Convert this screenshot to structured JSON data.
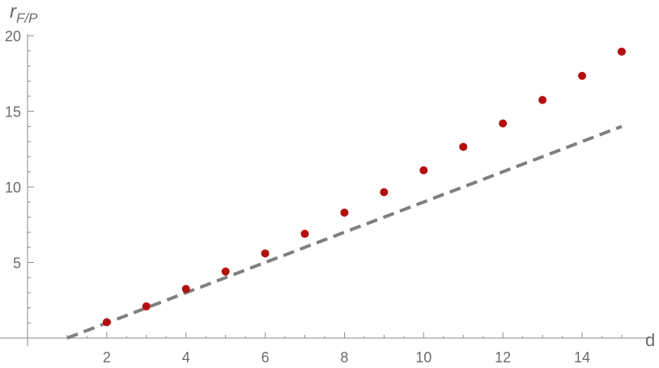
{
  "chart_data": {
    "type": "scatter",
    "title": "",
    "xlabel": "d",
    "ylabel": {
      "base": "r",
      "subscript": "F/P"
    },
    "xlim": [
      0,
      15.7
    ],
    "ylim": [
      0,
      20
    ],
    "x_ticks": [
      2,
      4,
      6,
      8,
      10,
      12,
      14
    ],
    "y_ticks": [
      5,
      10,
      15,
      20
    ],
    "grid": false,
    "series": [
      {
        "type": "scatter",
        "color": "#b30f0f",
        "points": [
          {
            "x": 2,
            "y": 1.05
          },
          {
            "x": 3,
            "y": 2.1
          },
          {
            "x": 4,
            "y": 3.25
          },
          {
            "x": 5,
            "y": 4.4
          },
          {
            "x": 6,
            "y": 5.6
          },
          {
            "x": 7,
            "y": 6.9
          },
          {
            "x": 8,
            "y": 8.3
          },
          {
            "x": 9,
            "y": 9.65
          },
          {
            "x": 10,
            "y": 11.1
          },
          {
            "x": 11,
            "y": 12.65
          },
          {
            "x": 12,
            "y": 14.2
          },
          {
            "x": 13,
            "y": 15.75
          },
          {
            "x": 14,
            "y": 17.35
          },
          {
            "x": 15,
            "y": 18.95
          }
        ]
      },
      {
        "type": "line",
        "style": "dashed",
        "color": "#7f7f7f",
        "points": [
          {
            "x": 1,
            "y": 0
          },
          {
            "x": 15,
            "y": 14
          }
        ]
      }
    ]
  }
}
